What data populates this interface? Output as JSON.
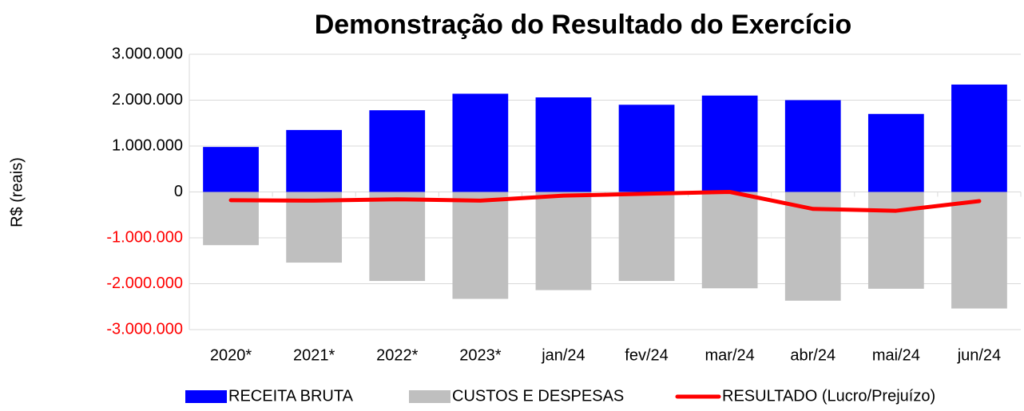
{
  "chart_data": {
    "type": "bar-line",
    "title": "Demonstração do Resultado do Exercício",
    "y_label": "R$ (reais)",
    "categories": [
      "2020*",
      "2021*",
      "2022*",
      "2023*",
      "jan/24",
      "fev/24",
      "mar/24",
      "abr/24",
      "mai/24",
      "jun/24"
    ],
    "series": [
      {
        "name": "RECEITA BRUTA",
        "kind": "bar",
        "color": "#0000ff",
        "values": [
          980000,
          1350000,
          1780000,
          2140000,
          2060000,
          1900000,
          2100000,
          2000000,
          1700000,
          2340000
        ]
      },
      {
        "name": "CUSTOS E DESPESAS",
        "kind": "bar",
        "color": "#bfbfbf",
        "values": [
          -1160000,
          -1540000,
          -1940000,
          -2330000,
          -2140000,
          -1940000,
          -2100000,
          -2370000,
          -2110000,
          -2540000
        ]
      },
      {
        "name": "RESULTADO (Lucro/Prejuízo)",
        "kind": "line",
        "color": "#ff0000",
        "values": [
          -180000,
          -190000,
          -160000,
          -190000,
          -80000,
          -40000,
          0,
          -370000,
          -410000,
          -200000
        ]
      }
    ],
    "ylim": [
      -3000000,
      3000000
    ],
    "yticks": [
      {
        "value": -3000000,
        "label": "-3.000.000"
      },
      {
        "value": -2000000,
        "label": "-2.000.000"
      },
      {
        "value": -1000000,
        "label": "-1.000.000"
      },
      0,
      {
        "value": 1000000,
        "label": "1.000.000"
      },
      {
        "value": 2000000,
        "label": "2.000.000"
      },
      {
        "value": 3000000,
        "label": "3.000.000"
      }
    ],
    "negative_tick_color": "#ff0000",
    "grid": true,
    "legend": "bottom"
  }
}
